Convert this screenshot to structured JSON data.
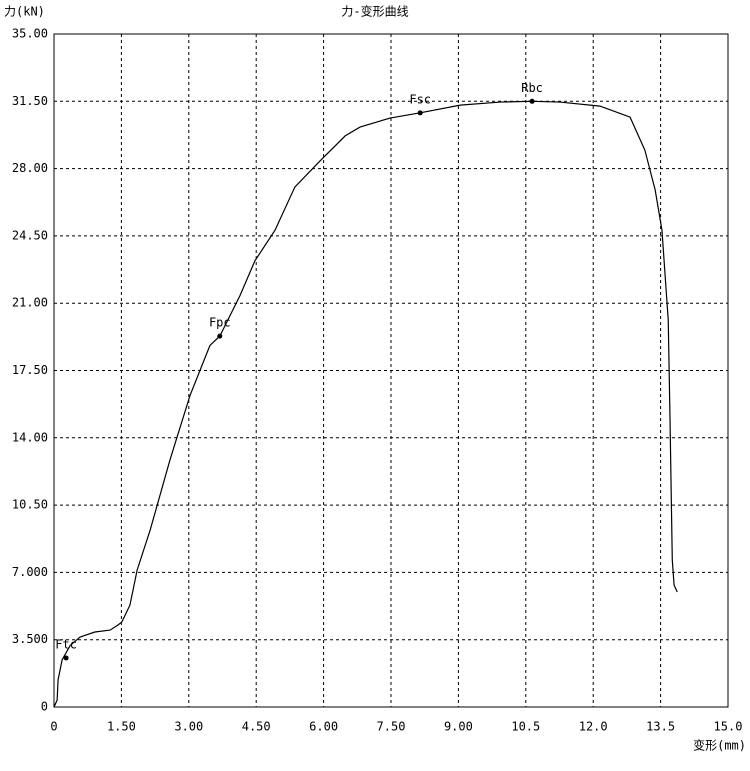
{
  "chart_data": {
    "type": "line",
    "title": "力-变形曲线",
    "y_label": "力(kN)",
    "x_label": "变形(mm)",
    "x": [
      0,
      0.07,
      0.09,
      0.18,
      0.36,
      0.58,
      0.91,
      1.25,
      1.42,
      1.51,
      1.69,
      1.85,
      2.14,
      2.58,
      3.03,
      3.47,
      3.69,
      4.14,
      4.47,
      4.92,
      5.36,
      5.92,
      6.48,
      6.81,
      7.48,
      8.15,
      9.04,
      9.93,
      10.64,
      11.26,
      12.15,
      12.82,
      13.15,
      13.38,
      13.53,
      13.67,
      13.71,
      13.76,
      13.8,
      13.87
    ],
    "series": [
      {
        "color": "#000000",
        "values": [
          0,
          0.36,
          1.4,
          2.45,
          3.2,
          3.64,
          3.9,
          4.0,
          4.26,
          4.42,
          5.3,
          7.12,
          9.2,
          12.84,
          16.22,
          18.8,
          19.29,
          21.4,
          23.2,
          24.8,
          27.04,
          28.4,
          29.7,
          30.16,
          30.63,
          30.9,
          31.3,
          31.46,
          31.5,
          31.46,
          31.25,
          30.68,
          28.96,
          26.88,
          24.8,
          20.12,
          14.9,
          7.64,
          6.34,
          5.98
        ]
      }
    ],
    "points": [
      {
        "name": "Ftc",
        "x": 0.27,
        "y": 2.55
      },
      {
        "name": "Fpc",
        "x": 3.69,
        "y": 19.29
      },
      {
        "name": "Fsc",
        "x": 8.15,
        "y": 30.9
      },
      {
        "name": "Rbc",
        "x": 10.64,
        "y": 31.5
      }
    ],
    "xlim": [
      0,
      15
    ],
    "ylim": [
      0,
      35
    ],
    "xticks": [
      0,
      {
        "value": 1.5,
        "label": "1.50"
      },
      {
        "value": 3,
        "label": "3.00"
      },
      {
        "value": 4.5,
        "label": "4.50"
      },
      {
        "value": 6,
        "label": "6.00"
      },
      {
        "value": 7.5,
        "label": "7.50"
      },
      {
        "value": 9,
        "label": "9.00"
      },
      {
        "value": 10.5,
        "label": "10.5"
      },
      {
        "value": 12,
        "label": "12.0"
      },
      {
        "value": 13.5,
        "label": "13.5"
      },
      {
        "value": 15,
        "label": "15.0"
      }
    ],
    "yticks": [
      0,
      {
        "value": 3.5,
        "label": "3.500"
      },
      {
        "value": 7,
        "label": "7.000"
      },
      {
        "value": 10.5,
        "label": "10.50"
      },
      {
        "value": 14,
        "label": "14.00"
      },
      {
        "value": 17.5,
        "label": "17.50"
      },
      {
        "value": 21,
        "label": "21.00"
      },
      {
        "value": 24.5,
        "label": "24.50"
      },
      {
        "value": 28,
        "label": "28.00"
      },
      {
        "value": 31.5,
        "label": "31.50"
      },
      {
        "value": 35,
        "label": "35.00"
      }
    ],
    "grid": true
  }
}
